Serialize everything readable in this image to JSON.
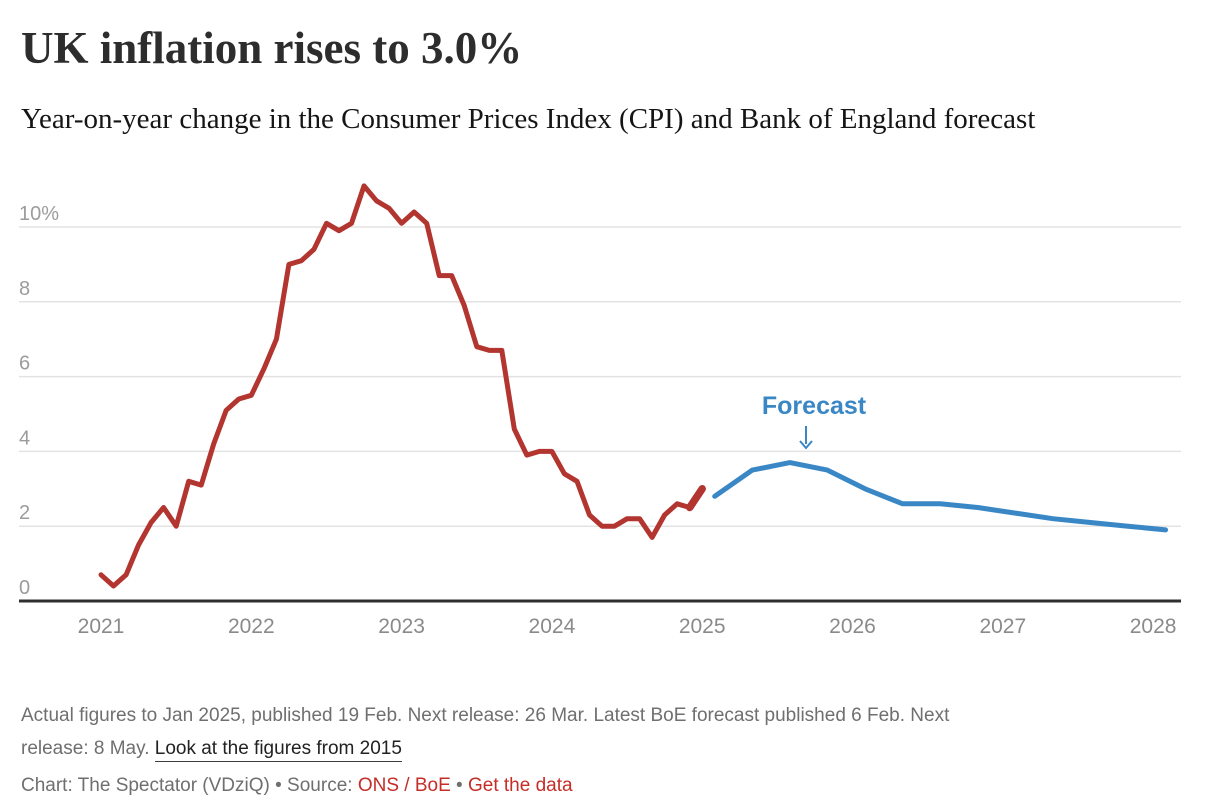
{
  "header": {
    "title": "UK inflation rises to 3.0%",
    "subtitle": "Year-on-year change in the Consumer Prices Index (CPI) and Bank of England forecast"
  },
  "chart_data": {
    "type": "line",
    "title": "UK inflation rises to 3.0%",
    "xlabel": "",
    "ylabel": "",
    "ylim": [
      0,
      11.5
    ],
    "xlim": [
      2020.45,
      2028.2
    ],
    "grid": "horizontal",
    "legend_position": "none",
    "yticks": [
      0,
      2,
      4,
      6,
      8,
      10
    ],
    "ytick_labels": [
      "0",
      "2",
      "4",
      "6",
      "8",
      "10%"
    ],
    "xticks": [
      2021,
      2022,
      2023,
      2024,
      2025,
      2026,
      2027,
      2028
    ],
    "series": [
      {
        "name": "Actual CPI year-on-year change",
        "color": "#b23530",
        "start": "2021-01",
        "step_months": 1,
        "values": [
          0.7,
          0.4,
          0.7,
          1.5,
          2.1,
          2.5,
          2.0,
          3.2,
          3.1,
          4.2,
          5.1,
          5.4,
          5.5,
          6.2,
          7.0,
          9.0,
          9.1,
          9.4,
          10.1,
          9.9,
          10.1,
          11.1,
          10.7,
          10.5,
          10.1,
          10.4,
          10.1,
          8.7,
          8.7,
          7.9,
          6.8,
          6.7,
          6.7,
          4.6,
          3.9,
          4.0,
          4.0,
          3.4,
          3.2,
          2.3,
          2.0,
          2.0,
          2.2,
          2.2,
          1.7,
          2.3,
          2.6,
          2.5,
          3.0
        ]
      },
      {
        "name": "Bank of England forecast",
        "color": "#3a87c6",
        "start": "2025-02",
        "step_months": 3,
        "values": [
          2.8,
          3.5,
          3.7,
          3.5,
          3.0,
          2.6,
          2.6,
          2.5,
          2.35,
          2.2,
          2.1,
          2.0,
          1.9
        ]
      }
    ],
    "annotation": {
      "text": "Forecast",
      "color": "#3a87c6"
    }
  },
  "footnote": {
    "line1": "Actual figures to Jan 2025, published 19 Feb. Next release: 26 Mar. Latest BoE forecast published 6 Feb. Next",
    "line2_prefix": "release: 8 May. ",
    "link": "Look at the figures from 2015"
  },
  "byline": {
    "prefix": "Chart: The Spectator (VDziQ) • Source: ",
    "source_link": "ONS / BoE",
    "separator": " • ",
    "data_link": "Get the data"
  }
}
